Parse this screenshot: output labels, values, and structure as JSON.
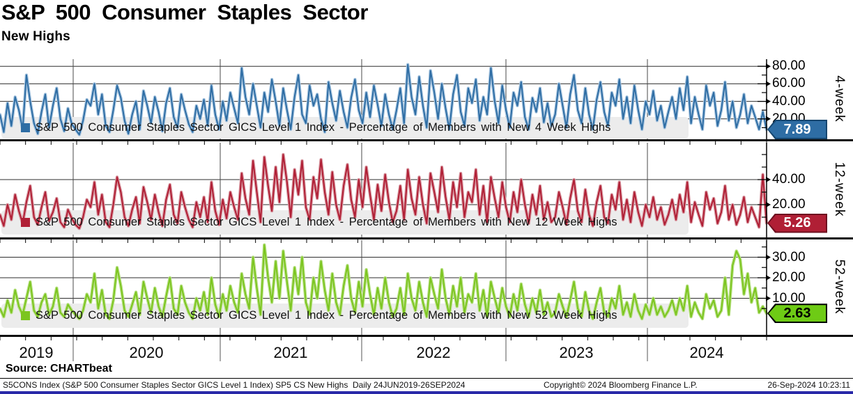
{
  "header": {
    "title": "S&P 500 Consumer Staples Sector",
    "subtitle": "New Highs"
  },
  "x_axis": {
    "years": [
      "2019",
      "2020",
      "2021",
      "2022",
      "2023",
      "2024"
    ]
  },
  "footer": {
    "source": "Source: CHARTbeat",
    "left": "S5CONS Index (S&P 500 Consumer Staples Sector GICS Level 1 Index) SP5 CS New Highs  Daily 24JUN2019-26SEP2024",
    "center": "Copyright© 2024 Bloomberg Finance L.P.",
    "right": "26-Sep-2024 10:23:11",
    "bar_color": "#2929a8"
  },
  "style": {
    "grid_h": "#2e2e2e",
    "grid_v": "#4a4a4a",
    "axis": "#000000",
    "separator": "#0d0d0d",
    "legend_band": "#ececec"
  },
  "chart_data": [
    {
      "type": "line",
      "name": "4-week",
      "legend": "S&P 500 Consumer Staples Sector GICS Level 1 Index - Percentage of Members with New 4 Week Highs",
      "color": "#2e6da4",
      "halo_color": "#a9c6e0",
      "badge": {
        "value": "7.89",
        "bg": "#2e6da4",
        "fg": "#ffffff",
        "border": "#16466f"
      },
      "ylim": [
        0,
        88
      ],
      "yticks_major": [
        {
          "v": 20,
          "label": "20.00"
        },
        {
          "v": 40,
          "label": "40.00"
        },
        {
          "v": 60,
          "label": "60.00"
        },
        {
          "v": 80,
          "label": "80.00"
        }
      ],
      "yticks_minor": [
        10,
        30,
        50,
        70
      ],
      "values": [
        25,
        5,
        38,
        12,
        45,
        30,
        8,
        70,
        40,
        15,
        3,
        28,
        48,
        10,
        35,
        55,
        20,
        6,
        32,
        14,
        8,
        2,
        18,
        42,
        35,
        60,
        25,
        48,
        12,
        5,
        30,
        58,
        44,
        18,
        3,
        25,
        40,
        8,
        52,
        35,
        15,
        45,
        28,
        6,
        38,
        55,
        22,
        10,
        48,
        30,
        14,
        5,
        35,
        20,
        42,
        12,
        58,
        25,
        8,
        40,
        18,
        50,
        32,
        15,
        78,
        45,
        25,
        60,
        35,
        10,
        50,
        28,
        65,
        40,
        12,
        55,
        30,
        8,
        45,
        70,
        25,
        15,
        58,
        35,
        48,
        20,
        5,
        62,
        38,
        18,
        52,
        28,
        10,
        44,
        65,
        30,
        15,
        50,
        22,
        58,
        36,
        12,
        48,
        25,
        8,
        30,
        55,
        15,
        82,
        45,
        25,
        68,
        35,
        10,
        75,
        50,
        20,
        60,
        32,
        8,
        48,
        70,
        28,
        12,
        55,
        38,
        65,
        18,
        45,
        25,
        78,
        40,
        15,
        58,
        30,
        10,
        50,
        35,
        62,
        22,
        8,
        44,
        28,
        55,
        16,
        38,
        12,
        25,
        60,
        35,
        10,
        48,
        70,
        30,
        15,
        55,
        25,
        8,
        42,
        62,
        28,
        12,
        50,
        35,
        65,
        20,
        45,
        15,
        58,
        30,
        8,
        40,
        25,
        52,
        18,
        35,
        10,
        28,
        45,
        20,
        55,
        30,
        68,
        15,
        45,
        25,
        8,
        58,
        35,
        50,
        12,
        30,
        62,
        18,
        40,
        10,
        25,
        48,
        15,
        35,
        22,
        8,
        28,
        7.89
      ]
    },
    {
      "type": "line",
      "name": "12-week",
      "legend": "S&P 500 Consumer Staples Sector GICS Level 1 Index - Percentage of Members with New 12 Week Highs",
      "color": "#b01f35",
      "halo_color": "#d99aa3",
      "badge": {
        "value": "5.26",
        "bg": "#b01f35",
        "fg": "#ffffff",
        "border": "#6e1020"
      },
      "ylim": [
        0,
        68
      ],
      "yticks_major": [
        {
          "v": 20,
          "label": "20.00"
        },
        {
          "v": 40,
          "label": "40.00"
        }
      ],
      "yticks_minor": [
        10,
        30,
        50,
        60
      ],
      "values": [
        12,
        3,
        20,
        8,
        28,
        15,
        5,
        22,
        35,
        10,
        4,
        18,
        30,
        7,
        14,
        25,
        6,
        2,
        16,
        9,
        4,
        1,
        10,
        24,
        18,
        38,
        12,
        28,
        6,
        2,
        20,
        42,
        30,
        10,
        3,
        16,
        26,
        5,
        34,
        22,
        8,
        28,
        14,
        3,
        24,
        36,
        12,
        5,
        30,
        18,
        8,
        2,
        22,
        10,
        26,
        6,
        38,
        15,
        4,
        24,
        9,
        30,
        18,
        8,
        45,
        25,
        12,
        55,
        30,
        6,
        58,
        35,
        15,
        50,
        22,
        60,
        38,
        10,
        48,
        28,
        55,
        18,
        8,
        42,
        25,
        56,
        30,
        12,
        46,
        20,
        8,
        35,
        52,
        24,
        10,
        40,
        18,
        50,
        28,
        8,
        36,
        15,
        44,
        22,
        6,
        15,
        35,
        8,
        48,
        25,
        12,
        42,
        20,
        5,
        45,
        30,
        14,
        50,
        26,
        8,
        38,
        18,
        45,
        10,
        30,
        22,
        48,
        12,
        35,
        6,
        42,
        25,
        10,
        38,
        18,
        6,
        30,
        14,
        40,
        20,
        5,
        28,
        12,
        35,
        8,
        22,
        6,
        10,
        30,
        18,
        4,
        25,
        40,
        15,
        6,
        32,
        12,
        3,
        22,
        35,
        10,
        5,
        28,
        16,
        38,
        8,
        24,
        6,
        30,
        14,
        3,
        20,
        10,
        26,
        8,
        18,
        4,
        12,
        24,
        8,
        28,
        14,
        38,
        6,
        22,
        12,
        3,
        30,
        16,
        25,
        5,
        14,
        35,
        8,
        20,
        4,
        12,
        26,
        6,
        18,
        10,
        2,
        44,
        5.26
      ]
    },
    {
      "type": "line",
      "name": "52-week",
      "legend": "S&P 500 Consumer Staples Sector GICS Level 1 Index - Percentage of Members with New 52 Week Highs",
      "color": "#7cc520",
      "halo_color": "#b9e187",
      "badge": {
        "value": "2.63",
        "bg": "#6ecb15",
        "fg": "#000000",
        "border": "#000000"
      },
      "ylim": [
        0,
        38
      ],
      "yticks_major": [
        {
          "v": 10,
          "label": "10.00"
        },
        {
          "v": 20,
          "label": "20.00"
        },
        {
          "v": 30,
          "label": "30.00"
        }
      ],
      "yticks_minor": [
        5,
        15,
        25,
        35
      ],
      "values": [
        5,
        1,
        9,
        3,
        14,
        6,
        2,
        10,
        18,
        4,
        1,
        8,
        12,
        2,
        6,
        15,
        3,
        1,
        7,
        4,
        2,
        0,
        4,
        12,
        8,
        22,
        5,
        14,
        2,
        0,
        9,
        25,
        16,
        4,
        1,
        7,
        13,
        2,
        18,
        10,
        3,
        15,
        6,
        1,
        11,
        20,
        5,
        2,
        16,
        8,
        3,
        0,
        10,
        4,
        13,
        2,
        20,
        7,
        1,
        12,
        4,
        16,
        8,
        3,
        22,
        12,
        5,
        30,
        15,
        2,
        36,
        20,
        8,
        28,
        10,
        33,
        18,
        4,
        25,
        12,
        30,
        8,
        2,
        20,
        10,
        28,
        14,
        4,
        22,
        8,
        2,
        16,
        26,
        10,
        3,
        18,
        6,
        24,
        12,
        2,
        15,
        5,
        20,
        8,
        1,
        5,
        15,
        2,
        22,
        10,
        4,
        18,
        8,
        1,
        20,
        12,
        5,
        24,
        10,
        2,
        16,
        6,
        20,
        3,
        12,
        8,
        22,
        4,
        14,
        1,
        18,
        10,
        3,
        15,
        6,
        1,
        12,
        4,
        17,
        7,
        1,
        10,
        3,
        14,
        2,
        8,
        1,
        3,
        12,
        6,
        1,
        9,
        18,
        5,
        1,
        13,
        4,
        0,
        8,
        15,
        3,
        1,
        10,
        5,
        16,
        2,
        8,
        1,
        12,
        4,
        0,
        7,
        2,
        10,
        2,
        6,
        1,
        4,
        9,
        2,
        10,
        4,
        16,
        1,
        8,
        3,
        0,
        12,
        5,
        9,
        1,
        4,
        20,
        2,
        26,
        33,
        29,
        12,
        22,
        8,
        15,
        3,
        6,
        2.63
      ]
    }
  ]
}
